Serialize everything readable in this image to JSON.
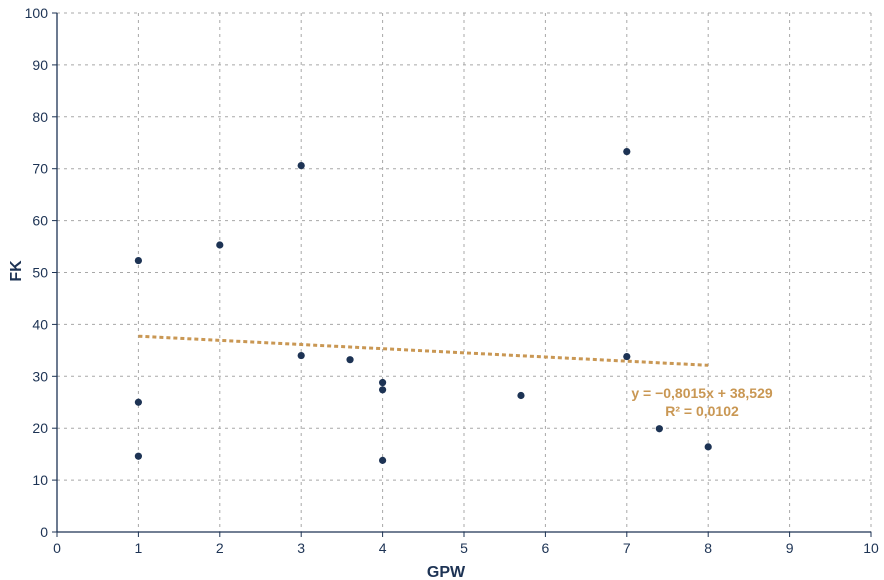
{
  "chart_data": {
    "type": "scatter",
    "xlabel": "GPW",
    "ylabel": "FK",
    "xlim": [
      0,
      10
    ],
    "ylim": [
      0,
      100
    ],
    "xticks": [
      0,
      1,
      2,
      3,
      4,
      5,
      6,
      7,
      8,
      9,
      10
    ],
    "yticks": [
      0,
      10,
      20,
      30,
      40,
      50,
      60,
      70,
      80,
      90,
      100
    ],
    "grid": true,
    "points": [
      {
        "x": 1,
        "y": 52.3
      },
      {
        "x": 1,
        "y": 25.0
      },
      {
        "x": 1,
        "y": 14.6
      },
      {
        "x": 2,
        "y": 55.3
      },
      {
        "x": 3,
        "y": 70.6
      },
      {
        "x": 3,
        "y": 34.0
      },
      {
        "x": 3.6,
        "y": 33.2
      },
      {
        "x": 4,
        "y": 28.8
      },
      {
        "x": 4,
        "y": 27.4
      },
      {
        "x": 4,
        "y": 13.8
      },
      {
        "x": 5.7,
        "y": 26.3
      },
      {
        "x": 7,
        "y": 73.3
      },
      {
        "x": 7,
        "y": 33.8
      },
      {
        "x": 7.4,
        "y": 19.9
      },
      {
        "x": 8,
        "y": 16.4
      }
    ],
    "trendline": {
      "slope": -0.8015,
      "intercept": 38.529,
      "x_range": [
        1,
        8
      ],
      "equation": "y = −0,8015x + 38,529",
      "r_squared": "R² = 0,0102",
      "color": "#c99753"
    },
    "colors": {
      "points": "#1d3354",
      "axes": "#1d3354",
      "grid": "#a8a8a8"
    }
  }
}
